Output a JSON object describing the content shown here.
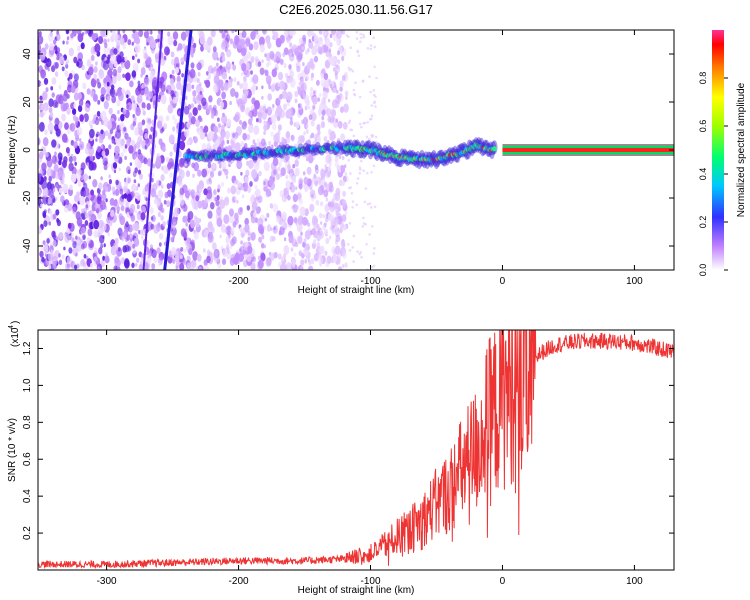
{
  "title": "C2E6.2025.030.11.56.G17",
  "chart_data": [
    {
      "type": "heatmap",
      "xlabel": "Height of straight line (km)",
      "ylabel": "Frequency (Hz)",
      "xlim": [
        -352,
        130
      ],
      "ylim": [
        -50,
        50
      ],
      "xticks": [
        -300,
        -200,
        -100,
        0,
        100
      ],
      "yticks": [
        -40,
        -20,
        0,
        20,
        40
      ],
      "colorbar": {
        "label": "Normalized spectral amplitude",
        "range": [
          0,
          1
        ],
        "ticks": [
          0.0,
          0.2,
          0.4,
          0.6,
          0.8
        ]
      },
      "features": {
        "noise_region_x": [
          -352,
          -118
        ],
        "signal_track": [
          {
            "x": -240,
            "y": -3
          },
          {
            "x": -200,
            "y": -2
          },
          {
            "x": -150,
            "y": 0
          },
          {
            "x": -120,
            "y": 1
          },
          {
            "x": -100,
            "y": 0
          },
          {
            "x": -80,
            "y": -3
          },
          {
            "x": -60,
            "y": -4
          },
          {
            "x": -50,
            "y": -4
          },
          {
            "x": -40,
            "y": -2
          },
          {
            "x": -30,
            "y": -1
          },
          {
            "x": -20,
            "y": 2
          },
          {
            "x": -10,
            "y": 0
          },
          {
            "x": 0,
            "y": 0
          },
          {
            "x": 130,
            "y": 0
          }
        ],
        "diagonal_streaks": [
          {
            "x_bottom": -256,
            "x_top": -236
          },
          {
            "x_bottom": -272,
            "x_top": -258
          }
        ]
      }
    },
    {
      "type": "line",
      "xlabel": "Height of straight line (km)",
      "ylabel": "SNR (10 * v/v)",
      "y_scale_label": "(x10",
      "y_scale_exponent": "4",
      "xlim": [
        -352,
        130
      ],
      "ylim": [
        0,
        13000
      ],
      "xticks": [
        -300,
        -200,
        -100,
        0,
        100
      ],
      "yticks": [
        2000,
        4000,
        6000,
        8000,
        10000,
        12000
      ],
      "ytick_labels": [
        "0.2",
        "0.4",
        "0.6",
        "0.8",
        "1.0",
        "1.2"
      ],
      "series": [
        {
          "color": "#ee3333",
          "points": [
            {
              "x": -352,
              "y": 300
            },
            {
              "x": -300,
              "y": 300
            },
            {
              "x": -250,
              "y": 400
            },
            {
              "x": -200,
              "y": 500
            },
            {
              "x": -150,
              "y": 500
            },
            {
              "x": -120,
              "y": 600
            },
            {
              "x": -100,
              "y": 900
            },
            {
              "x": -90,
              "y": 1300
            },
            {
              "x": -80,
              "y": 1800
            },
            {
              "x": -70,
              "y": 2200
            },
            {
              "x": -60,
              "y": 2800
            },
            {
              "x": -50,
              "y": 3600
            },
            {
              "x": -40,
              "y": 4300
            },
            {
              "x": -30,
              "y": 5500
            },
            {
              "x": -20,
              "y": 6500
            },
            {
              "x": -10,
              "y": 8200
            },
            {
              "x": 0,
              "y": 9300
            },
            {
              "x": 10,
              "y": 10500
            },
            {
              "x": 20,
              "y": 11200
            },
            {
              "x": 30,
              "y": 11800
            },
            {
              "x": 40,
              "y": 12200
            },
            {
              "x": 60,
              "y": 12400
            },
            {
              "x": 80,
              "y": 12400
            },
            {
              "x": 100,
              "y": 12300
            },
            {
              "x": 130,
              "y": 11800
            }
          ]
        }
      ]
    }
  ]
}
